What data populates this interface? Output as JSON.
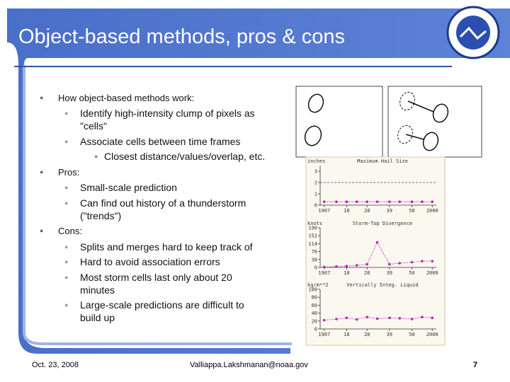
{
  "header": {
    "title": "Object-based methods, pros & cons"
  },
  "bullets": [
    {
      "text": "How object-based methods work:",
      "sub": [
        {
          "text": "Identify high-intensity clump of pixels as \"cells\"",
          "sub": []
        },
        {
          "text": "Associate cells between time frames",
          "sub": [
            {
              "text": "Closest distance/values/overlap, etc.",
              "sub": []
            }
          ]
        }
      ]
    },
    {
      "text": "Pros:",
      "sub": [
        {
          "text": "Small-scale prediction",
          "sub": []
        },
        {
          "text": "Can find out history of a thunderstorm (\"trends\")",
          "sub": []
        }
      ]
    },
    {
      "text": "Cons:",
      "sub": [
        {
          "text": "Splits and merges hard to keep track of",
          "sub": []
        },
        {
          "text": "Hard to avoid association errors",
          "sub": []
        },
        {
          "text": "Most storm cells last only about 20 minutes",
          "sub": []
        },
        {
          "text": "Large-scale predictions are difficult to build up",
          "sub": []
        }
      ]
    }
  ],
  "chart_data": [
    {
      "type": "line",
      "title": "Maximum Hail Size",
      "y_label": "inches",
      "color": "#c020c0",
      "x": [
        7,
        13,
        18,
        23,
        28,
        33,
        39,
        44,
        50,
        55,
        60
      ],
      "values": [
        0.3,
        0.3,
        0.3,
        0.3,
        0.3,
        0.3,
        0.3,
        0.3,
        0.3,
        0.3,
        0.3
      ],
      "reference_line": 2,
      "xlim": [
        5,
        62
      ],
      "ylim": [
        0,
        3.5
      ],
      "yticks": [
        0,
        1,
        2,
        3
      ],
      "xticks": [
        {
          "value": 7,
          "label": "1907"
        },
        18,
        28,
        39,
        50,
        {
          "value": 60,
          "label": "2000"
        }
      ]
    },
    {
      "type": "line",
      "title": "Storm-Top Divergence",
      "y_label": "knots",
      "color": "#c020c0",
      "x": [
        7,
        13,
        18,
        23,
        28,
        33,
        39,
        44,
        50,
        55,
        60
      ],
      "values": [
        2,
        4,
        6,
        10,
        15,
        120,
        15,
        20,
        25,
        30,
        30
      ],
      "xlim": [
        5,
        62
      ],
      "ylim": [
        0,
        190
      ],
      "yticks": [
        0,
        38,
        76,
        114,
        152,
        190
      ],
      "xticks": [
        {
          "value": 7,
          "label": "1907"
        },
        18,
        28,
        39,
        50,
        {
          "value": 60,
          "label": "2000"
        }
      ]
    },
    {
      "type": "line",
      "title": "Vertically Integ. Liquid",
      "y_label": "kg/m**2",
      "color": "#c020c0",
      "x": [
        7,
        13,
        18,
        23,
        28,
        33,
        39,
        44,
        50,
        55,
        60
      ],
      "values": [
        22,
        25,
        28,
        24,
        30,
        26,
        28,
        27,
        25,
        30,
        28
      ],
      "xlim": [
        5,
        62
      ],
      "ylim": [
        0,
        100
      ],
      "yticks": [
        0,
        20,
        40,
        60,
        80,
        100
      ],
      "xticks": [
        {
          "value": 7,
          "label": "1907"
        },
        18,
        28,
        39,
        50,
        {
          "value": 60,
          "label": "2000"
        }
      ]
    }
  ],
  "footer": {
    "date": "Oct. 23, 2008",
    "email": "Valliappa.Lakshmanan@noaa.gov",
    "page": "7"
  }
}
